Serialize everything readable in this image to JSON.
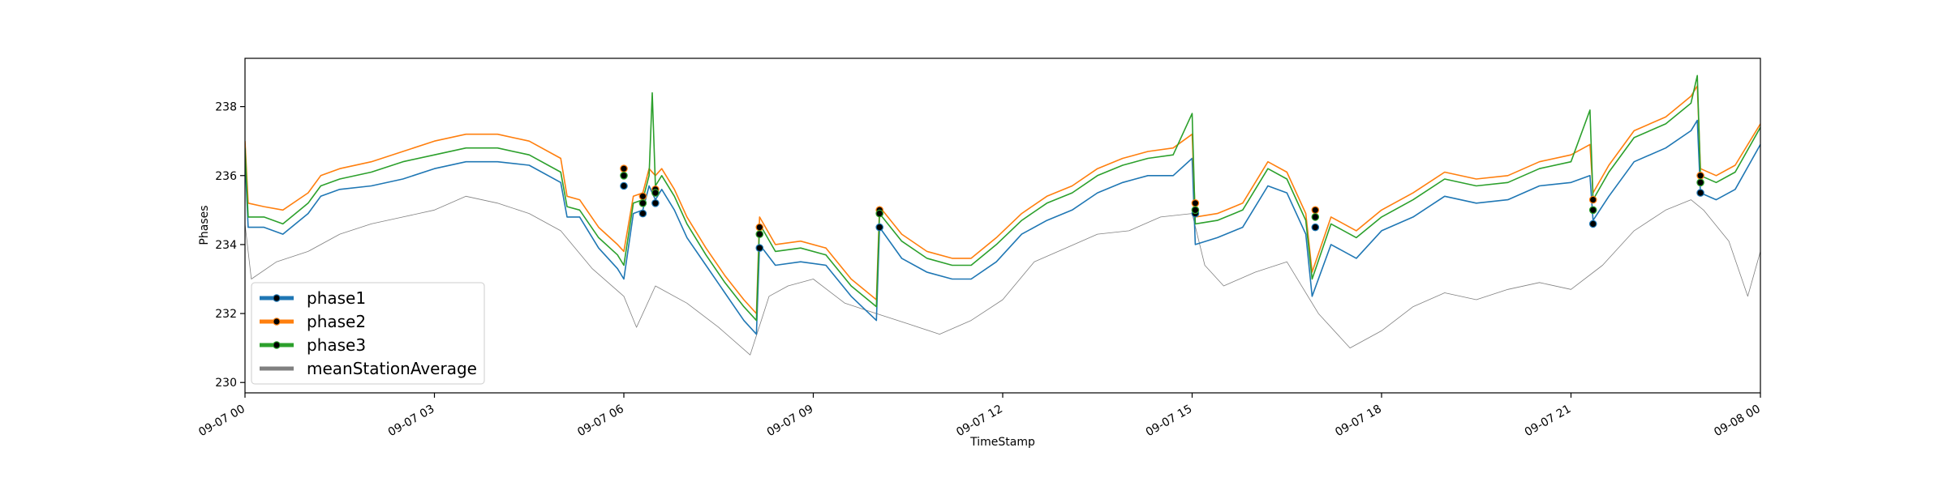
{
  "chart_data": {
    "type": "line",
    "title": "",
    "xlabel": "TimeStamp",
    "ylabel": "Phases",
    "xlim": [
      0,
      24
    ],
    "ylim": [
      229.7,
      239.4
    ],
    "x_unit": "hours from 09-07 00:00",
    "x_ticks": [
      {
        "value": 0,
        "label": "09-07 00"
      },
      {
        "value": 3,
        "label": "09-07 03"
      },
      {
        "value": 6,
        "label": "09-07 06"
      },
      {
        "value": 9,
        "label": "09-07 09"
      },
      {
        "value": 12,
        "label": "09-07 12"
      },
      {
        "value": 15,
        "label": "09-07 15"
      },
      {
        "value": 18,
        "label": "09-07 18"
      },
      {
        "value": 21,
        "label": "09-07 21"
      },
      {
        "value": 24,
        "label": "09-08 00"
      }
    ],
    "y_ticks": [
      230,
      232,
      234,
      236,
      238
    ],
    "grid": false,
    "legend_position": "lower-left",
    "series": [
      {
        "name": "phase1",
        "color": "#1f77b4",
        "width": 1.6,
        "x": [
          0,
          0.05,
          0.3,
          0.6,
          1.0,
          1.2,
          1.5,
          2.0,
          2.5,
          3.0,
          3.5,
          4.0,
          4.5,
          5.0,
          5.1,
          5.3,
          5.6,
          5.9,
          6.0,
          6.15,
          6.3,
          6.4,
          6.5,
          6.6,
          6.8,
          7.0,
          7.3,
          7.6,
          7.9,
          8.1,
          8.15,
          8.4,
          8.8,
          9.2,
          9.6,
          10.0,
          10.05,
          10.4,
          10.8,
          11.2,
          11.5,
          11.9,
          12.3,
          12.7,
          13.1,
          13.5,
          13.9,
          14.3,
          14.7,
          15.0,
          15.05,
          15.4,
          15.8,
          16.2,
          16.5,
          16.8,
          16.9,
          17.2,
          17.6,
          18.0,
          18.5,
          19.0,
          19.5,
          20.0,
          20.5,
          21.0,
          21.3,
          21.35,
          21.6,
          22.0,
          22.5,
          22.9,
          23.0,
          23.05,
          23.3,
          23.6,
          24.0
        ],
        "y": [
          236.5,
          234.5,
          234.5,
          234.3,
          234.9,
          235.4,
          235.6,
          235.7,
          235.9,
          236.2,
          236.4,
          236.4,
          236.3,
          235.8,
          234.8,
          234.8,
          233.9,
          233.3,
          233.0,
          234.9,
          235.0,
          235.7,
          235.3,
          235.6,
          235.0,
          234.2,
          233.4,
          232.6,
          231.8,
          231.4,
          234.0,
          233.4,
          233.5,
          233.4,
          232.5,
          231.8,
          234.5,
          233.6,
          233.2,
          233.0,
          233.0,
          233.5,
          234.3,
          234.7,
          235.0,
          235.5,
          235.8,
          236.0,
          236.0,
          236.5,
          234.0,
          234.2,
          234.5,
          235.7,
          235.5,
          234.3,
          232.5,
          234.0,
          233.6,
          234.4,
          234.8,
          235.4,
          235.2,
          235.3,
          235.7,
          235.8,
          236.0,
          234.7,
          235.4,
          236.4,
          236.8,
          237.3,
          237.6,
          235.5,
          235.3,
          235.6,
          236.9
        ]
      },
      {
        "name": "phase2",
        "color": "#ff7f0e",
        "width": 1.6,
        "x": [
          0,
          0.05,
          0.3,
          0.6,
          1.0,
          1.2,
          1.5,
          2.0,
          2.5,
          3.0,
          3.5,
          4.0,
          4.5,
          5.0,
          5.1,
          5.3,
          5.6,
          5.9,
          6.0,
          6.15,
          6.3,
          6.4,
          6.5,
          6.6,
          6.8,
          7.0,
          7.3,
          7.6,
          7.9,
          8.1,
          8.15,
          8.4,
          8.8,
          9.2,
          9.6,
          10.0,
          10.05,
          10.4,
          10.8,
          11.2,
          11.5,
          11.9,
          12.3,
          12.7,
          13.1,
          13.5,
          13.9,
          14.3,
          14.7,
          15.0,
          15.05,
          15.4,
          15.8,
          16.2,
          16.5,
          16.8,
          16.9,
          17.2,
          17.6,
          18.0,
          18.5,
          19.0,
          19.5,
          20.0,
          20.5,
          21.0,
          21.3,
          21.35,
          21.6,
          22.0,
          22.5,
          22.9,
          23.0,
          23.05,
          23.3,
          23.6,
          24.0
        ],
        "y": [
          237.0,
          235.2,
          235.1,
          235.0,
          235.5,
          236.0,
          236.2,
          236.4,
          236.7,
          237.0,
          237.2,
          237.2,
          237.0,
          236.5,
          235.4,
          235.3,
          234.5,
          234.0,
          233.8,
          235.4,
          235.5,
          236.2,
          236.0,
          236.2,
          235.6,
          234.8,
          233.9,
          233.1,
          232.4,
          232.0,
          234.8,
          234.0,
          234.1,
          233.9,
          233.0,
          232.4,
          235.1,
          234.3,
          233.8,
          233.6,
          233.6,
          234.2,
          234.9,
          235.4,
          235.7,
          236.2,
          236.5,
          236.7,
          236.8,
          237.2,
          234.8,
          234.9,
          235.2,
          236.4,
          236.1,
          234.9,
          233.2,
          234.8,
          234.4,
          235.0,
          235.5,
          236.1,
          235.9,
          236.0,
          236.4,
          236.6,
          236.9,
          235.5,
          236.3,
          237.3,
          237.7,
          238.3,
          238.6,
          236.2,
          236.0,
          236.3,
          237.5
        ]
      },
      {
        "name": "phase3",
        "color": "#2ca02c",
        "width": 1.6,
        "x": [
          0,
          0.05,
          0.3,
          0.6,
          1.0,
          1.2,
          1.5,
          2.0,
          2.5,
          3.0,
          3.5,
          4.0,
          4.5,
          5.0,
          5.1,
          5.3,
          5.6,
          5.9,
          6.0,
          6.15,
          6.3,
          6.4,
          6.45,
          6.5,
          6.6,
          6.8,
          7.0,
          7.3,
          7.6,
          7.9,
          8.1,
          8.15,
          8.4,
          8.8,
          9.2,
          9.6,
          10.0,
          10.05,
          10.4,
          10.8,
          11.2,
          11.5,
          11.9,
          12.3,
          12.7,
          13.1,
          13.5,
          13.9,
          14.3,
          14.7,
          15.0,
          15.05,
          15.4,
          15.8,
          16.2,
          16.5,
          16.8,
          16.9,
          17.2,
          17.6,
          18.0,
          18.5,
          19.0,
          19.5,
          20.0,
          20.5,
          21.0,
          21.3,
          21.35,
          21.6,
          22.0,
          22.5,
          22.9,
          23.0,
          23.05,
          23.3,
          23.6,
          24.0
        ],
        "y": [
          236.8,
          234.8,
          234.8,
          234.6,
          235.2,
          235.7,
          235.9,
          236.1,
          236.4,
          236.6,
          236.8,
          236.8,
          236.6,
          236.1,
          235.1,
          235.0,
          234.2,
          233.7,
          233.4,
          235.2,
          235.3,
          236.0,
          238.4,
          235.7,
          236.0,
          235.4,
          234.6,
          233.7,
          232.9,
          232.2,
          231.8,
          234.6,
          233.8,
          233.9,
          233.7,
          232.8,
          232.2,
          234.9,
          234.1,
          233.6,
          233.4,
          233.4,
          234.0,
          234.7,
          235.2,
          235.5,
          236.0,
          236.3,
          236.5,
          236.6,
          237.8,
          234.6,
          234.7,
          235.0,
          236.2,
          235.9,
          234.7,
          233.0,
          234.6,
          234.2,
          234.8,
          235.3,
          235.9,
          235.7,
          235.8,
          236.2,
          236.4,
          237.9,
          235.3,
          236.1,
          237.1,
          237.5,
          238.1,
          238.9,
          236.0,
          235.8,
          236.1,
          237.4
        ]
      },
      {
        "name": "meanStationAverage",
        "color": "#808080",
        "width": 0.8,
        "x": [
          0,
          0.1,
          0.5,
          1.0,
          1.5,
          2.0,
          2.5,
          3.0,
          3.5,
          4.0,
          4.5,
          5.0,
          5.5,
          6.0,
          6.2,
          6.3,
          6.5,
          7.0,
          7.5,
          8.0,
          8.3,
          8.6,
          9.0,
          9.5,
          10.0,
          10.5,
          11.0,
          11.5,
          12.0,
          12.5,
          13.0,
          13.5,
          14.0,
          14.5,
          15.0,
          15.2,
          15.5,
          16.0,
          16.5,
          17.0,
          17.5,
          18.0,
          18.5,
          19.0,
          19.5,
          20.0,
          20.5,
          21.0,
          21.5,
          22.0,
          22.5,
          22.9,
          23.1,
          23.5,
          23.8,
          24.0
        ],
        "y": [
          234.6,
          233.0,
          233.5,
          233.8,
          234.3,
          234.6,
          234.8,
          235.0,
          235.4,
          235.2,
          234.9,
          234.4,
          233.3,
          232.5,
          231.6,
          232.0,
          232.8,
          232.3,
          231.6,
          230.8,
          232.5,
          232.8,
          233.0,
          232.3,
          232.0,
          231.7,
          231.4,
          231.8,
          232.4,
          233.5,
          233.9,
          234.3,
          234.4,
          234.8,
          234.9,
          233.4,
          232.8,
          233.2,
          233.5,
          232.0,
          231.0,
          231.5,
          232.2,
          232.6,
          232.4,
          232.7,
          232.9,
          232.7,
          233.4,
          234.4,
          235.0,
          235.3,
          235.0,
          234.1,
          232.5,
          233.8
        ]
      }
    ],
    "markers": [
      {
        "series": "phase1",
        "x": [
          6.0,
          6.3,
          6.5,
          8.15,
          10.05,
          15.05,
          16.95,
          21.35,
          23.05
        ],
        "y": [
          235.7,
          234.9,
          235.2,
          233.9,
          234.5,
          234.9,
          234.5,
          234.6,
          235.5
        ]
      },
      {
        "series": "phase2",
        "x": [
          6.0,
          6.3,
          6.5,
          8.15,
          10.05,
          15.05,
          16.95,
          21.35,
          23.05
        ],
        "y": [
          236.2,
          235.4,
          235.6,
          234.5,
          235.0,
          235.2,
          235.0,
          235.3,
          236.0
        ]
      },
      {
        "series": "phase3",
        "x": [
          6.0,
          6.3,
          6.5,
          8.15,
          10.05,
          15.05,
          16.95,
          21.35,
          23.05
        ],
        "y": [
          236.0,
          235.2,
          235.5,
          234.3,
          234.9,
          235.0,
          234.8,
          235.0,
          235.8
        ]
      }
    ],
    "legend": [
      {
        "label": "phase1",
        "color": "#1f77b4",
        "marker": true
      },
      {
        "label": "phase2",
        "color": "#ff7f0e",
        "marker": true
      },
      {
        "label": "phase3",
        "color": "#2ca02c",
        "marker": true
      },
      {
        "label": "meanStationAverage",
        "color": "#808080",
        "marker": false
      }
    ]
  }
}
